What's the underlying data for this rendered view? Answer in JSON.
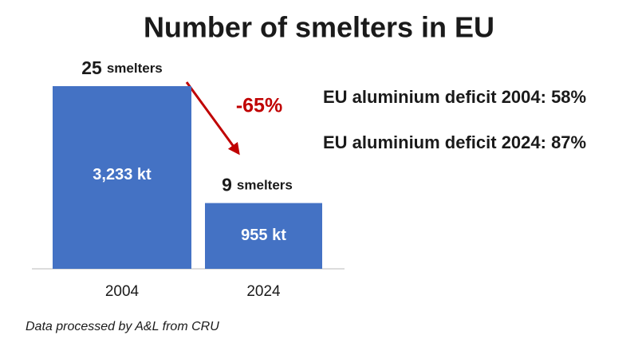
{
  "chart_data": {
    "type": "bar",
    "title": "Number of smelters in EU",
    "categories": [
      "2004",
      "2024"
    ],
    "values": [
      25,
      9
    ],
    "value_unit": "smelters",
    "bar_labels": [
      "3,233 kt",
      "955 kt"
    ],
    "color": "#4472c4",
    "change_label": "-65%",
    "change_color": "#c00000",
    "notes": [
      "EU aluminium deficit 2004: 58%",
      "EU aluminium deficit 2024: 87%"
    ],
    "source": "Data processed by A&L from CRU"
  }
}
